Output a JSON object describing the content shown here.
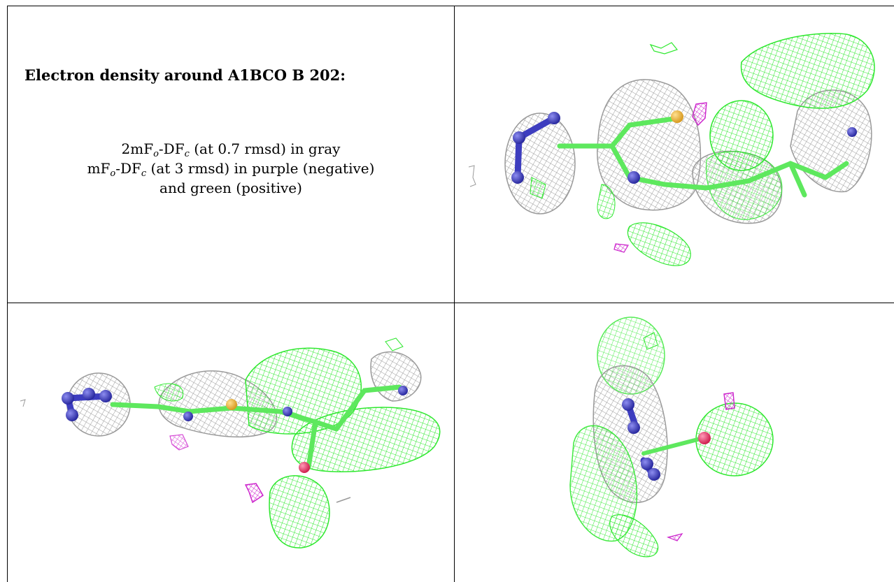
{
  "panel": {
    "title": "Electron density around A1BCO B 202:",
    "map_2fo": {
      "prefix": "2mF",
      "sub1": "o",
      "mid": "-DF",
      "sub2": "c",
      "suffix": " (at 0.7 rmsd) in gray"
    },
    "map_fo": {
      "prefix": "mF",
      "sub1": "o",
      "mid": "-DF",
      "sub2": "c",
      "suffix": " (at 3 rmsd) in purple (negative)"
    },
    "map_fo_cont": "and green (positive)"
  },
  "colors": {
    "gray_mesh": "#9a9a9a",
    "green_mesh": "#33ee33",
    "purple_mesh": "#cc22cc",
    "nitrogen": "#3d3dbf",
    "sulfur": "#e8b030",
    "oxygen": "#e83a6a",
    "carbon_bond": "#5ee85e"
  },
  "views": [
    {
      "name": "view-1"
    },
    {
      "name": "view-2"
    },
    {
      "name": "view-3"
    }
  ]
}
